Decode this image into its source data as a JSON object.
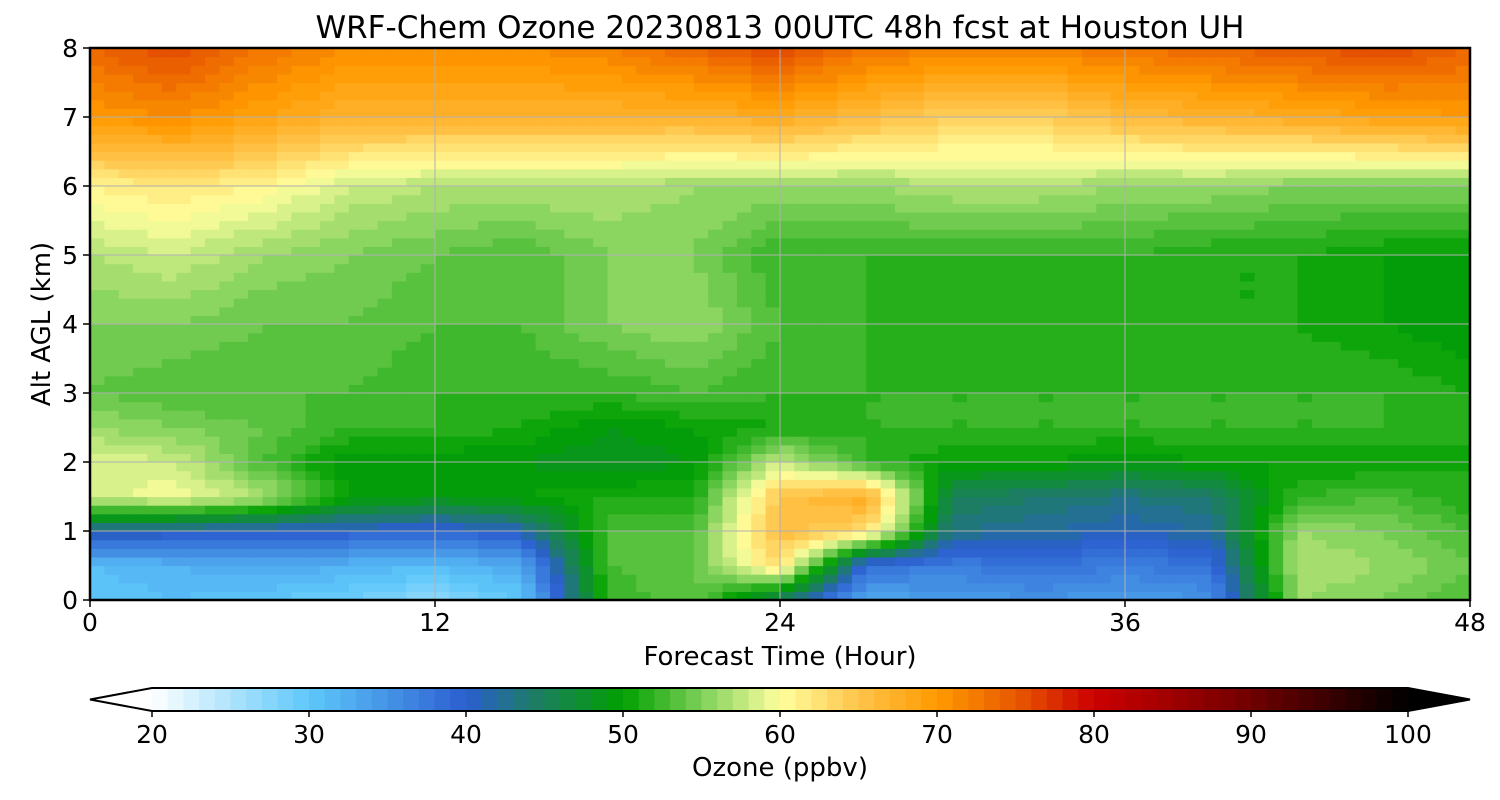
{
  "chart_data": {
    "type": "heatmap",
    "title": "WRF-Chem Ozone  20230813 00UTC 48h fcst at Houston UH",
    "xlabel": "Forecast Time (Hour)",
    "ylabel": "Alt AGL (km)",
    "xlim": [
      0,
      48
    ],
    "ylim": [
      0,
      8
    ],
    "x_ticks": [
      0,
      12,
      24,
      36,
      48
    ],
    "y_ticks": [
      0,
      1,
      2,
      3,
      4,
      5,
      6,
      7,
      8
    ],
    "grid": true,
    "x_hours": [
      0,
      3,
      6,
      9,
      12,
      15,
      18,
      21,
      24,
      27,
      30,
      33,
      36,
      39,
      42,
      45,
      48
    ],
    "z_km": [
      0,
      0.5,
      1,
      1.5,
      2,
      2.5,
      3,
      4,
      5,
      6,
      7,
      8
    ],
    "values": [
      [
        30,
        31,
        30,
        29,
        27,
        30,
        52,
        54,
        44,
        33,
        34,
        35,
        34,
        35,
        56,
        55,
        53
      ],
      [
        31,
        32,
        33,
        32,
        31,
        33,
        53,
        54,
        63,
        38,
        37,
        38,
        37,
        38,
        57,
        56,
        54
      ],
      [
        42,
        41,
        40,
        40,
        39,
        41,
        53,
        53,
        66,
        63,
        43,
        42,
        41,
        42,
        56,
        55,
        53
      ],
      [
        58,
        60,
        57,
        50,
        49,
        50,
        51,
        51,
        65,
        68,
        45,
        44,
        43,
        44,
        52,
        53,
        51
      ],
      [
        59,
        58,
        53,
        49,
        49,
        49,
        48,
        49,
        58,
        52,
        50,
        50,
        49,
        50,
        50,
        50,
        51
      ],
      [
        56,
        55,
        54,
        52,
        52,
        51,
        49,
        50,
        51,
        52,
        52,
        52,
        52,
        52,
        52,
        52,
        51
      ],
      [
        54,
        53,
        53,
        53,
        52,
        52,
        52,
        53,
        52,
        52,
        52,
        52,
        52,
        52,
        52,
        52,
        51
      ],
      [
        55,
        55,
        54,
        54,
        53,
        53,
        55,
        56,
        53,
        52,
        51,
        52,
        51,
        51,
        51,
        50,
        49
      ],
      [
        57,
        58,
        56,
        55,
        54,
        53,
        55,
        55,
        52,
        52,
        52,
        52,
        52,
        51,
        51,
        50,
        50
      ],
      [
        61,
        62,
        61,
        58,
        57,
        57,
        57,
        56,
        56,
        56,
        57,
        57,
        56,
        56,
        55,
        55,
        55
      ],
      [
        70,
        71,
        69,
        67,
        67,
        67,
        67,
        67,
        68,
        66,
        64,
        64,
        66,
        67,
        68,
        69,
        70
      ],
      [
        74,
        76,
        73,
        71,
        71,
        71,
        72,
        74,
        76,
        73,
        72,
        72,
        73,
        74,
        75,
        76,
        74
      ]
    ],
    "colorbar": {
      "label": "Ozone  (ppbv)",
      "min": 20,
      "max": 100,
      "ticks": [
        20,
        30,
        40,
        50,
        60,
        70,
        80,
        90,
        100
      ],
      "extend": "both",
      "orientation": "horizontal",
      "stops": [
        {
          "v": 20,
          "c": "#ffffff"
        },
        {
          "v": 30,
          "c": "#5ec8fa"
        },
        {
          "v": 40,
          "c": "#2b5ed0"
        },
        {
          "v": 44,
          "c": "#1e7a6c"
        },
        {
          "v": 50,
          "c": "#00a000"
        },
        {
          "v": 55,
          "c": "#7ed05a"
        },
        {
          "v": 60,
          "c": "#ffff9e"
        },
        {
          "v": 65,
          "c": "#ffc44a"
        },
        {
          "v": 70,
          "c": "#ff9a00"
        },
        {
          "v": 75,
          "c": "#e85a00"
        },
        {
          "v": 80,
          "c": "#cc0000"
        },
        {
          "v": 90,
          "c": "#700000"
        },
        {
          "v": 100,
          "c": "#000000"
        }
      ]
    }
  }
}
